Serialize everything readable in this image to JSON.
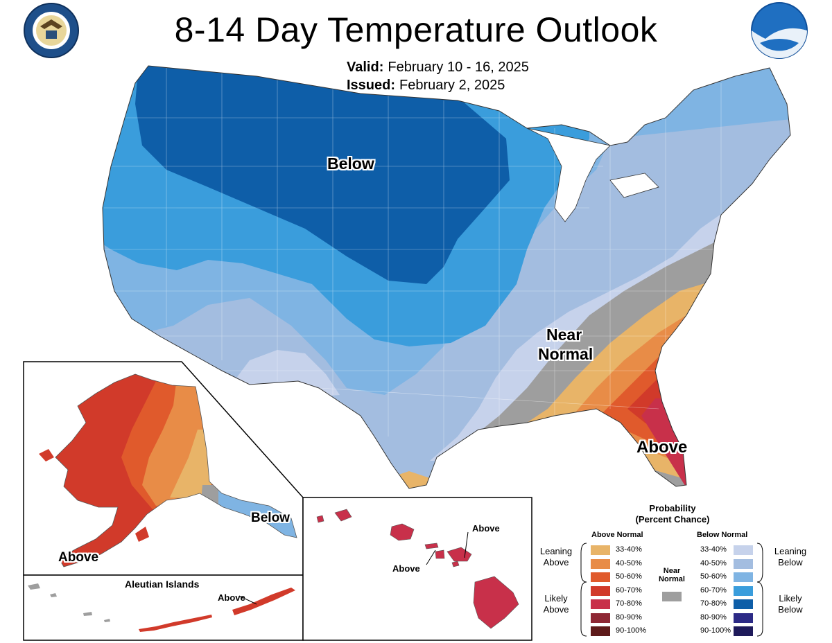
{
  "header": {
    "title": "8-14 Day Temperature Outlook",
    "valid_label": "Valid:",
    "valid_value": "February 10 - 16, 2025",
    "issued_label": "Issued:",
    "issued_value": "February 2, 2025"
  },
  "logos": {
    "doc_seal_text": "DEPARTMENT OF COMMERCE · UNITED STATES OF AMERICA",
    "noaa_text": "NOAA"
  },
  "map_labels": {
    "below": "Below",
    "near_normal_1": "Near",
    "near_normal_2": "Normal",
    "above": "Above",
    "alaska_above": "Above",
    "alaska_below": "Below",
    "aleutian_title": "Aleutian Islands",
    "aleutian_above": "Above",
    "hawaii_above_1": "Above",
    "hawaii_above_2": "Above"
  },
  "legend": {
    "title_1": "Probability",
    "title_2": "(Percent Chance)",
    "above_header": "Above Normal",
    "below_header": "Below Normal",
    "near_header_1": "Near",
    "near_header_2": "Normal",
    "leaning_above_1": "Leaning",
    "leaning_above_2": "Above",
    "likely_above_1": "Likely",
    "likely_above_2": "Above",
    "leaning_below_1": "Leaning",
    "leaning_below_2": "Below",
    "likely_below_1": "Likely",
    "likely_below_2": "Below",
    "above_ranges": [
      "33-40%",
      "40-50%",
      "50-60%",
      "60-70%",
      "70-80%",
      "80-90%",
      "90-100%"
    ],
    "below_ranges": [
      "33-40%",
      "40-50%",
      "50-60%",
      "60-70%",
      "70-80%",
      "80-90%",
      "90-100%"
    ],
    "above_colors": [
      "#e8b468",
      "#e88c47",
      "#e05a2c",
      "#d13a2a",
      "#c8304a",
      "#8e2734",
      "#5e1a1a"
    ],
    "below_colors": [
      "#c6d2eb",
      "#a3bde0",
      "#7fb4e3",
      "#3a9ddc",
      "#0e5ea8",
      "#2c2a86",
      "#1e1a5a"
    ],
    "near_normal_color": "#9e9e9e"
  }
}
